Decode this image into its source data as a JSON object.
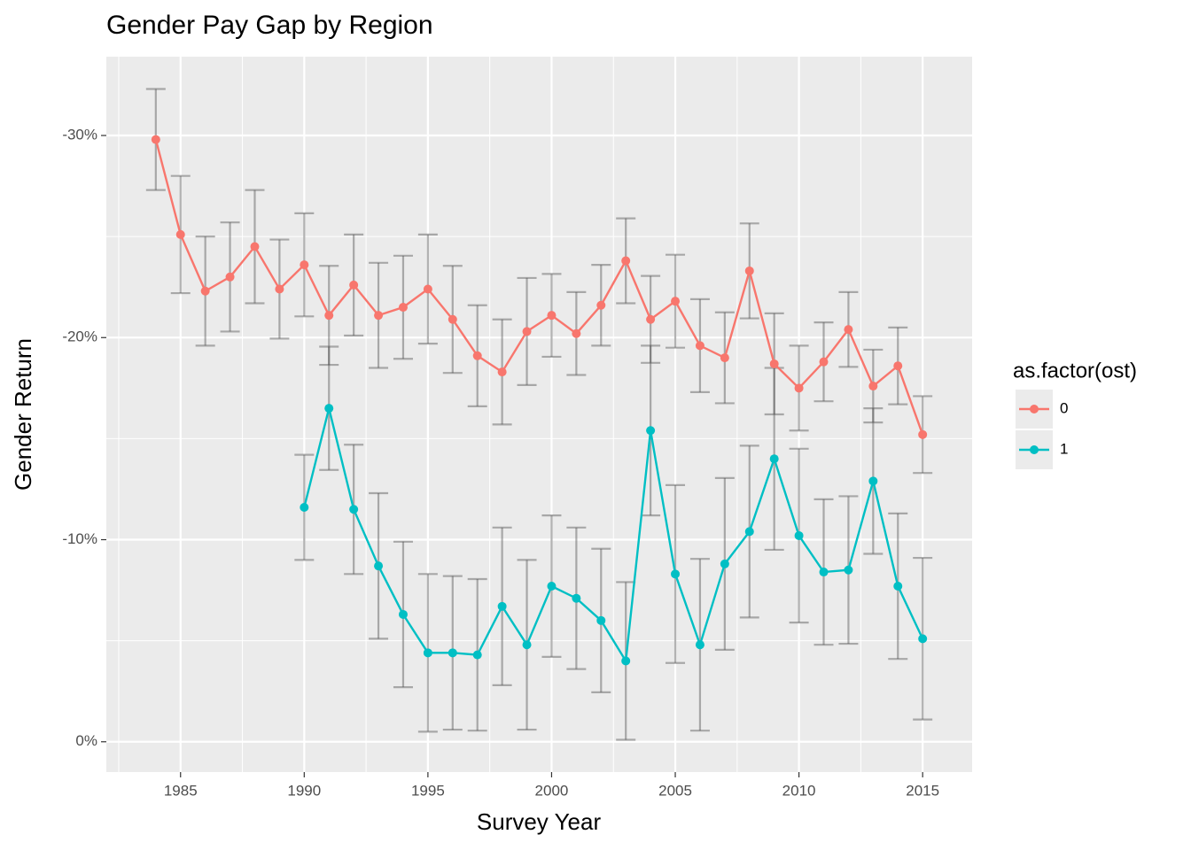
{
  "chart_data": {
    "type": "line_errorbar",
    "title": "Gender Pay Gap by Region",
    "x_label": "Survey Year",
    "y_label": "Gender Return",
    "legend_title": "as.factor(ost)",
    "legend_position": "right",
    "grid": true,
    "error_color": "#555555",
    "x": [
      1984,
      1985,
      1986,
      1987,
      1988,
      1989,
      1990,
      1991,
      1992,
      1993,
      1994,
      1995,
      1996,
      1997,
      1998,
      1999,
      2000,
      2001,
      2002,
      2003,
      2004,
      2005,
      2006,
      2007,
      2008,
      2009,
      2010,
      2011,
      2012,
      2013,
      2014,
      2015
    ],
    "series": [
      {
        "name": "0",
        "color": "#F8766D",
        "values": [
          -29.8,
          -25.1,
          -22.3,
          -23.0,
          -24.5,
          -22.4,
          -23.6,
          -21.1,
          -22.6,
          -21.1,
          -21.5,
          -22.4,
          -20.9,
          -19.1,
          -18.3,
          -20.3,
          -21.1,
          -20.2,
          -21.6,
          -23.8,
          -20.9,
          -21.8,
          -19.6,
          -19.0,
          -23.3,
          -18.7,
          -17.5,
          -18.8,
          -20.4,
          -17.6,
          -18.6,
          -15.2
        ],
        "errors": [
          2.5,
          2.9,
          2.7,
          2.7,
          2.8,
          2.45,
          2.55,
          2.45,
          2.5,
          2.6,
          2.55,
          2.7,
          2.65,
          2.5,
          2.6,
          2.65,
          2.05,
          2.05,
          2.0,
          2.1,
          2.15,
          2.3,
          2.3,
          2.25,
          2.35,
          2.5,
          2.1,
          1.95,
          1.85,
          1.8,
          1.9,
          1.9
        ]
      },
      {
        "name": "1",
        "color": "#00BFC4",
        "values": [
          null,
          null,
          null,
          null,
          null,
          null,
          -11.6,
          -16.5,
          -11.5,
          -8.7,
          -6.3,
          -4.4,
          -4.4,
          -4.3,
          -6.7,
          -4.8,
          -7.7,
          -7.1,
          -6.0,
          -4.0,
          -15.4,
          -8.3,
          -4.8,
          -8.8,
          -10.4,
          -14.0,
          -10.2,
          -8.4,
          -8.5,
          -12.9,
          -7.7,
          -5.1
        ],
        "errors": [
          null,
          null,
          null,
          null,
          null,
          null,
          2.6,
          3.05,
          3.2,
          3.6,
          3.6,
          3.9,
          3.8,
          3.75,
          3.9,
          4.2,
          3.5,
          3.5,
          3.55,
          3.9,
          4.2,
          4.4,
          4.25,
          4.25,
          4.25,
          4.5,
          4.3,
          3.6,
          3.65,
          3.6,
          3.6,
          4.0
        ]
      }
    ],
    "xlim": [
      1982,
      2017
    ],
    "xticks": [
      1985,
      1990,
      1995,
      2000,
      2005,
      2010,
      2015
    ],
    "x_minor_ticks": [
      1982.5,
      1987.5,
      1992.5,
      1997.5,
      2002.5,
      2007.5,
      2012.5
    ],
    "ylim": [
      1.5,
      -33.9
    ],
    "yticks": [
      {
        "value": 0,
        "label": "0%"
      },
      {
        "value": -10,
        "label": "-10%"
      },
      {
        "value": -20,
        "label": "-20%"
      },
      {
        "value": -30,
        "label": "-30%"
      }
    ],
    "y_minor_ticks": [
      -5,
      -15,
      -25
    ]
  }
}
